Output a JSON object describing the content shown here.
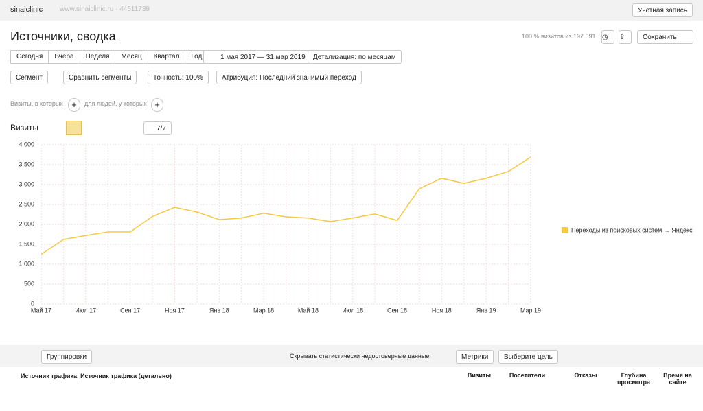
{
  "top": {
    "account": "sinaiclinic",
    "site": "www.sinaiclinic.ru · 44511739",
    "account_button": "Учетная запись"
  },
  "header": {
    "title": "Источники, сводка",
    "visits_note": "100 % визитов из 197 591",
    "save": "Сохранить"
  },
  "periods": [
    "Сегодня",
    "Вчера",
    "Неделя",
    "Месяц",
    "Квартал",
    "Год"
  ],
  "date_range": "1 мая 2017 — 31 мар 2019",
  "detail": "Детализация: по месяцам",
  "filters": [
    "Сегмент",
    "Сравнить сегменты",
    "Точность: 100%",
    "Атрибуция: Последний значимый переход"
  ],
  "segment_row": [
    "Визиты, в которых",
    "для людей, у которых"
  ],
  "chart_header": {
    "label": "Визиты",
    "series_count": "7/7"
  },
  "chart_data": {
    "type": "line",
    "categories": [
      "Май 17",
      null,
      "Июл 17",
      null,
      "Сен 17",
      null,
      "Ноя 17",
      null,
      "Янв 18",
      null,
      "Мар 18",
      null,
      "Май 18",
      null,
      "Июл 18",
      null,
      "Сен 18",
      null,
      "Ноя 18",
      null,
      "Янв 19",
      null,
      "Мар 19"
    ],
    "series": [
      {
        "name": "Переходы из поисковых систем → Яндекс",
        "color": "#f5c842",
        "values": [
          1250,
          1620,
          1720,
          1810,
          1810,
          2200,
          2430,
          2310,
          2120,
          2160,
          2280,
          2190,
          2160,
          2070,
          2160,
          2260,
          2100,
          2900,
          3160,
          3030,
          3160,
          3330,
          3690
        ]
      }
    ],
    "ylim": [
      0,
      4000
    ],
    "yticks": [
      0,
      500,
      {
        "value": 1000,
        "label": "1 000"
      },
      {
        "value": 1500,
        "label": "1 500"
      },
      {
        "value": 2000,
        "label": "2 000"
      },
      {
        "value": 2500,
        "label": "2 500"
      },
      {
        "value": 3000,
        "label": "3 000"
      },
      {
        "value": 3500,
        "label": "3 500"
      },
      {
        "value": 4000,
        "label": "4 000"
      }
    ],
    "grid": true,
    "legend": "right"
  },
  "bottom": {
    "groupings": "Группировки",
    "hide_checkbox": "Скрывать статистически недостоверные данные",
    "metrics": "Метрики",
    "goal": "Выберите цель",
    "dimension": "Источник трафика, Источник трафика (детально)",
    "columns": [
      "Визиты",
      "Посетители",
      "Отказы",
      "Глубина просмотра",
      "Время на сайте"
    ]
  }
}
